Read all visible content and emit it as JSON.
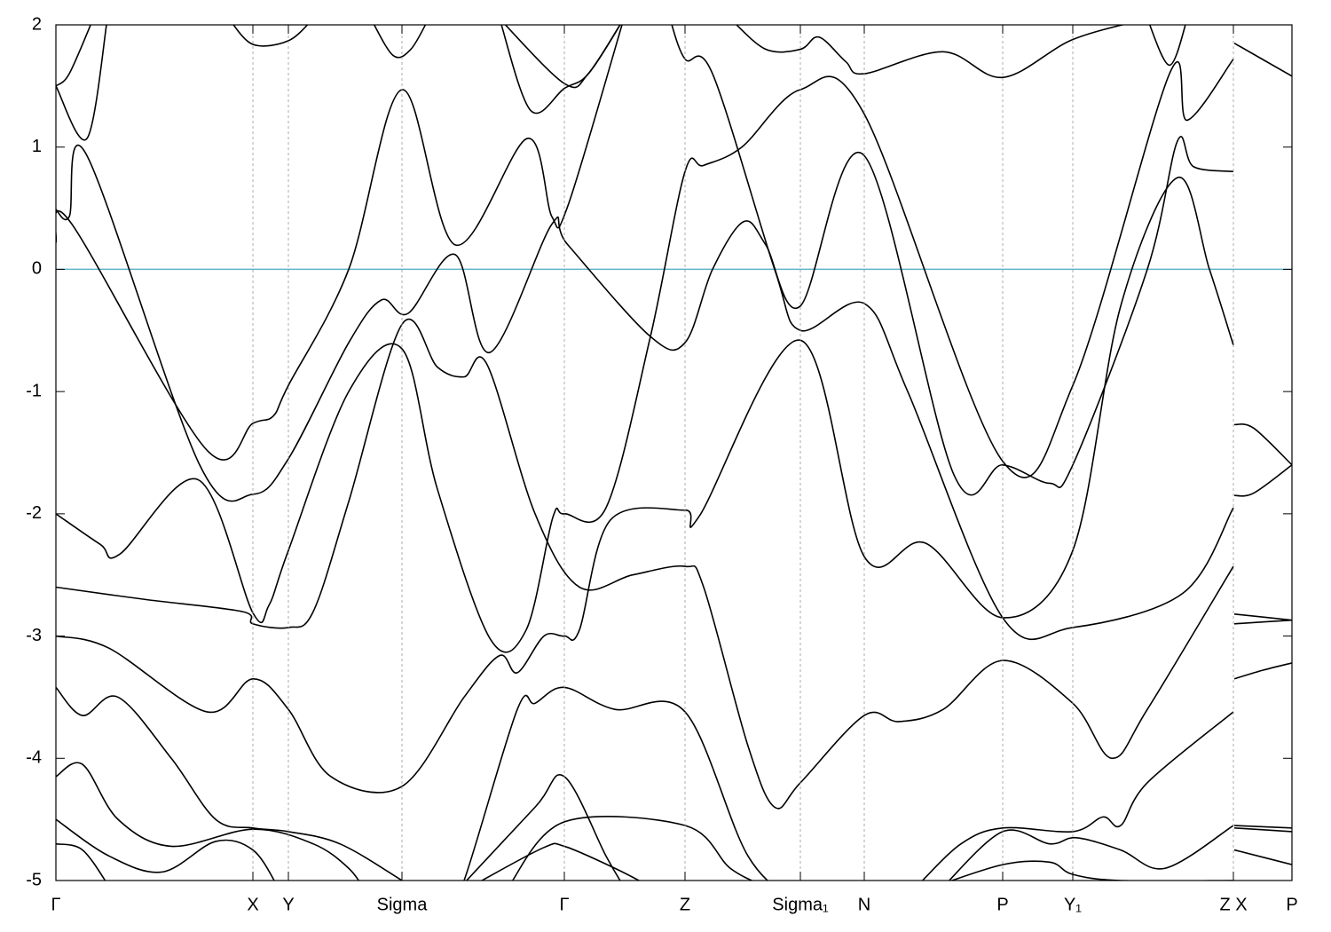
{
  "chart_data": {
    "type": "line",
    "color": "#000000",
    "hlines": [
      {
        "value": 0,
        "color": "#5fb2c8"
      }
    ],
    "xlim": [
      0,
      13.93
    ],
    "ylim": [
      -5,
      2
    ],
    "yticks": [
      -5,
      -4,
      -3,
      -2,
      -1,
      0,
      1,
      2
    ],
    "xticks": [
      {
        "value": 0,
        "label": "Γ"
      },
      {
        "value": 2.22,
        "label": "X"
      },
      {
        "value": 2.62,
        "label": "Y"
      },
      {
        "value": 3.9,
        "label": "Sigma"
      },
      {
        "value": 5.73,
        "label": "Γ"
      },
      {
        "value": 7.09,
        "label": "Z"
      },
      {
        "value": 8.39,
        "label": "Sigma₁"
      },
      {
        "value": 9.11,
        "label": "N"
      },
      {
        "value": 10.67,
        "label": "P"
      },
      {
        "value": 11.46,
        "label": "Y₁"
      },
      {
        "value": 13.27,
        "label": "Z X"
      },
      {
        "value": 13.93,
        "label": "P"
      }
    ],
    "series": [
      {
        "x": [
          0,
          0.17,
          1.69,
          2.22,
          2.45,
          2.62,
          3.3,
          3.9,
          4.5,
          5.31,
          5.59,
          5.77,
          6.4
        ],
        "values": [
          0.22,
          0.38,
          -1.47,
          -1.26,
          -1.2,
          -0.95,
          0.0,
          1.47,
          0.2,
          1.07,
          0.43,
          0.52,
          2.05
        ]
      },
      {
        "x": [
          0,
          0.15,
          0.35,
          1.62,
          2.22,
          2.62,
          3.3,
          3.67,
          3.97,
          4.5,
          4.89,
          5.59,
          5.77,
          6.7,
          7.09,
          7.4,
          7.75,
          8.0,
          8.39,
          9.11,
          10.12,
          10.67,
          11.2,
          11.46,
          12.3,
          12.64,
          12.82,
          13.27
        ],
        "values": [
          0.49,
          0.43,
          0.93,
          -1.6,
          -1.84,
          -1.55,
          -0.6,
          -0.25,
          -0.36,
          0.12,
          -0.68,
          0.37,
          0.2,
          -0.55,
          -0.6,
          0.0,
          0.39,
          0.2,
          -0.3,
          0.93,
          -1.68,
          -1.6,
          -1.75,
          -1.6,
          0.0,
          1.05,
          0.84,
          0.8
        ]
      },
      {
        "x": [
          0,
          0.5,
          0.72,
          1.6,
          2.22,
          2.4,
          2.62,
          3.3,
          3.9,
          4.3,
          4.9,
          5.3,
          5.6,
          5.73,
          6.2,
          6.7,
          7.09,
          7.3,
          7.73,
          8.39,
          9.11,
          10.67,
          11.46,
          12.55,
          12.75,
          13.27
        ],
        "values": [
          -2.0,
          -2.25,
          -2.33,
          -1.72,
          -2.81,
          -2.75,
          -2.3,
          -1.0,
          -0.65,
          -1.8,
          -3.03,
          -2.95,
          -2.03,
          -2.0,
          -1.95,
          -0.55,
          0.8,
          0.85,
          1.0,
          1.47,
          1.27,
          -1.57,
          -0.95,
          1.6,
          1.22,
          1.72
        ]
      },
      {
        "x": [
          0,
          1.0,
          2.1,
          2.22,
          2.62,
          2.9,
          3.3,
          3.9,
          4.3,
          4.6,
          4.86,
          5.4,
          5.9,
          6.5,
          7.09,
          7.3,
          7.8,
          8.1,
          8.39,
          9.11,
          9.5,
          10.0,
          10.67,
          11.46,
          11.9,
          12.3,
          13.27
        ],
        "values": [
          -2.6,
          -2.7,
          -2.8,
          -2.9,
          -2.93,
          -2.8,
          -1.9,
          -0.45,
          -0.8,
          -0.88,
          -0.78,
          -2.0,
          -2.6,
          -2.5,
          -2.43,
          -2.6,
          -3.9,
          -4.4,
          -4.2,
          -3.65,
          -3.7,
          -3.6,
          -3.2,
          -3.55,
          -4.0,
          -3.6,
          -2.43
        ]
      },
      {
        "x": [
          6.92,
          7.09,
          7.4,
          8.1,
          8.39,
          9.11,
          9.6,
          10.67,
          11.46,
          12.7,
          13.27
        ],
        "values": [
          2.05,
          1.72,
          1.6,
          0.0,
          -0.5,
          -0.28,
          -1.0,
          -2.85,
          -2.93,
          -2.65,
          -1.95
        ]
      },
      {
        "x": [
          0,
          0.6,
          1.7,
          2.22,
          2.62,
          3.1,
          3.9,
          4.6,
          5.0,
          5.2,
          5.5,
          5.73,
          5.9,
          6.25,
          7.09,
          7.25,
          8.39,
          9.11,
          9.8,
          10.67,
          11.46,
          12.0,
          12.64,
          13.0,
          13.27
        ],
        "values": [
          -3.0,
          -3.1,
          -3.62,
          -3.35,
          -3.6,
          -4.15,
          -4.23,
          -3.5,
          -3.16,
          -3.3,
          -3.0,
          -3.0,
          -2.95,
          -2.05,
          -1.97,
          -2.02,
          -0.58,
          -2.35,
          -2.24,
          -2.85,
          -2.3,
          -0.3,
          0.75,
          0.0,
          -0.62
        ]
      },
      {
        "x": [
          0,
          0.15,
          0.42
        ],
        "values": [
          1.5,
          1.6,
          2.05
        ]
      },
      {
        "x": [
          0,
          0.35,
          0.58
        ],
        "values": [
          1.5,
          1.07,
          2.05
        ]
      },
      {
        "x": [
          1.95,
          2.22,
          2.62,
          2.9
        ],
        "values": [
          2.05,
          1.84,
          1.87,
          2.05
        ]
      },
      {
        "x": [
          3.55,
          3.8,
          4.0,
          4.2
        ],
        "values": [
          2.05,
          1.75,
          1.8,
          2.05
        ]
      },
      {
        "x": [
          5.0,
          5.35,
          5.73,
          6.0,
          6.4
        ],
        "values": [
          2.05,
          1.3,
          1.48,
          1.6,
          2.05
        ]
      },
      {
        "x": [
          5.0,
          5.73,
          6.0,
          6.4
        ],
        "values": [
          2.05,
          1.52,
          1.6,
          2.05
        ]
      },
      {
        "x": [
          7.6,
          8.0,
          8.39,
          8.6,
          8.9,
          9.11,
          10.0,
          10.67,
          11.46,
          12.3
        ],
        "values": [
          2.05,
          1.8,
          1.8,
          1.9,
          1.7,
          1.6,
          1.78,
          1.57,
          1.88,
          2.05
        ]
      },
      {
        "x": [
          12.3,
          12.55,
          12.75
        ],
        "values": [
          2.05,
          1.67,
          2.05
        ]
      },
      {
        "x": [
          0,
          0.3,
          0.7,
          1.3,
          1.8,
          2.22,
          2.62,
          3.2,
          3.9,
          4.3
        ],
        "values": [
          -3.42,
          -3.65,
          -3.5,
          -4.0,
          -4.5,
          -4.57,
          -4.6,
          -4.7,
          -5.0,
          -5.2
        ]
      },
      {
        "x": [
          4.4,
          4.6,
          5.2,
          5.4,
          5.73,
          6.3,
          7.09,
          7.8,
          8.39
        ],
        "values": [
          -5.2,
          -5.0,
          -3.6,
          -3.55,
          -3.42,
          -3.6,
          -3.62,
          -4.8,
          -5.2
        ]
      },
      {
        "x": [
          0,
          0.3,
          0.7,
          1.3,
          2.22,
          2.9,
          3.3,
          3.5
        ],
        "values": [
          -4.15,
          -4.05,
          -4.5,
          -4.72,
          -4.58,
          -4.7,
          -4.9,
          -5.1
        ]
      },
      {
        "x": [
          0,
          0.6,
          1.2,
          1.8,
          2.22,
          2.5
        ],
        "values": [
          -4.5,
          -4.8,
          -4.93,
          -4.68,
          -4.75,
          -5.05
        ]
      },
      {
        "x": [
          0,
          0.3,
          0.6
        ],
        "values": [
          -4.7,
          -4.75,
          -5.05
        ]
      },
      {
        "x": [
          4.5,
          5.4,
          5.73,
          6.2,
          6.4
        ],
        "values": [
          -5.1,
          -4.4,
          -4.15,
          -4.8,
          -5.05
        ]
      },
      {
        "x": [
          5.1,
          5.73,
          7.09,
          7.6,
          8.0
        ],
        "values": [
          -5.05,
          -4.52,
          -4.55,
          -4.9,
          -5.05
        ]
      },
      {
        "x": [
          4.8,
          5.5,
          5.73,
          6.3,
          6.7
        ],
        "values": [
          -5.0,
          -4.73,
          -4.72,
          -4.9,
          -5.05
        ]
      },
      {
        "x": [
          9.7,
          10.2,
          10.67,
          11.46,
          11.8,
          12.0,
          12.3,
          13.27
        ],
        "values": [
          -5.05,
          -4.7,
          -4.57,
          -4.6,
          -4.48,
          -4.55,
          -4.2,
          -3.62
        ]
      },
      {
        "x": [
          10.0,
          10.67,
          11.2,
          11.5,
          12.0,
          12.5,
          13.27
        ],
        "values": [
          -5.05,
          -4.6,
          -4.7,
          -4.65,
          -4.75,
          -4.9,
          -4.55
        ]
      },
      {
        "x": [
          9.9,
          10.67,
          11.2,
          11.46,
          12.0,
          13.27
        ],
        "values": [
          -5.05,
          -4.87,
          -4.85,
          -4.95,
          -5.0,
          -5.0
        ]
      },
      {
        "x": [
          13.28,
          13.93
        ],
        "values": [
          1.85,
          1.58
        ]
      },
      {
        "x": [
          13.28,
          13.5,
          13.93
        ],
        "values": [
          -1.27,
          -1.3,
          -1.6
        ]
      },
      {
        "x": [
          13.28,
          13.5,
          13.93
        ],
        "values": [
          -1.85,
          -1.83,
          -1.6
        ]
      },
      {
        "x": [
          13.28,
          13.93
        ],
        "values": [
          -2.82,
          -2.87
        ]
      },
      {
        "x": [
          13.28,
          13.93
        ],
        "values": [
          -2.9,
          -2.87
        ]
      },
      {
        "x": [
          13.28,
          13.6,
          13.93
        ],
        "values": [
          -3.35,
          -3.28,
          -3.22
        ]
      },
      {
        "x": [
          13.28,
          13.93
        ],
        "values": [
          -4.55,
          -4.57
        ]
      },
      {
        "x": [
          13.28,
          13.93
        ],
        "values": [
          -4.57,
          -4.6
        ]
      },
      {
        "x": [
          13.28,
          13.93
        ],
        "values": [
          -4.75,
          -4.87
        ]
      }
    ]
  }
}
